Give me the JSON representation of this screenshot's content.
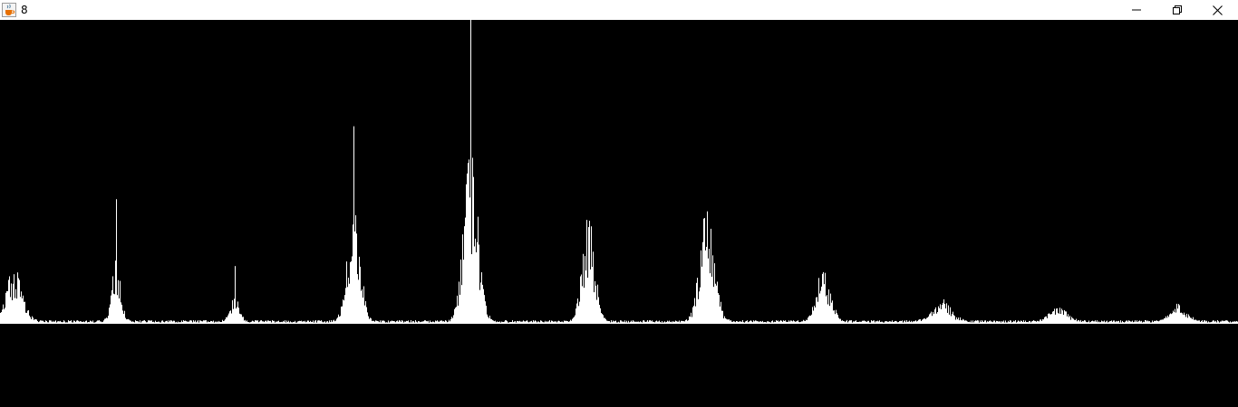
{
  "window": {
    "title": "8",
    "app_icon": "java-cup-icon",
    "controls": {
      "minimize_icon": "minimize-icon",
      "restore_icon": "restore-icon",
      "close_icon": "close-icon"
    }
  },
  "colors": {
    "titlebar_bg": "#ffffff",
    "canvas_bg": "#000000",
    "bars": "#ffffff"
  },
  "chart_data": {
    "type": "area",
    "x_range": [
      0,
      1366
    ],
    "y_range": [
      0,
      1
    ],
    "peaks": [
      {
        "center": 15,
        "height": 0.13,
        "width": 9,
        "spike": 0.0
      },
      {
        "center": 128,
        "height": 0.14,
        "width": 5,
        "spike": 0.41
      },
      {
        "center": 259,
        "height": 0.06,
        "width": 5,
        "spike": 0.19
      },
      {
        "center": 390,
        "height": 0.27,
        "width": 7,
        "spike": 0.65
      },
      {
        "center": 519,
        "height": 0.39,
        "width": 8,
        "spike": 1.0
      },
      {
        "center": 649,
        "height": 0.24,
        "width": 7,
        "spike": 0.31
      },
      {
        "center": 780,
        "height": 0.27,
        "width": 8,
        "spike": 0.37
      },
      {
        "center": 908,
        "height": 0.12,
        "width": 8,
        "spike": 0.17
      },
      {
        "center": 1039,
        "height": 0.05,
        "width": 10,
        "spike": 0.0
      },
      {
        "center": 1168,
        "height": 0.035,
        "width": 10,
        "spike": 0.0
      },
      {
        "center": 1300,
        "height": 0.04,
        "width": 9,
        "spike": 0.0
      }
    ],
    "baseline_level": 0.008
  }
}
